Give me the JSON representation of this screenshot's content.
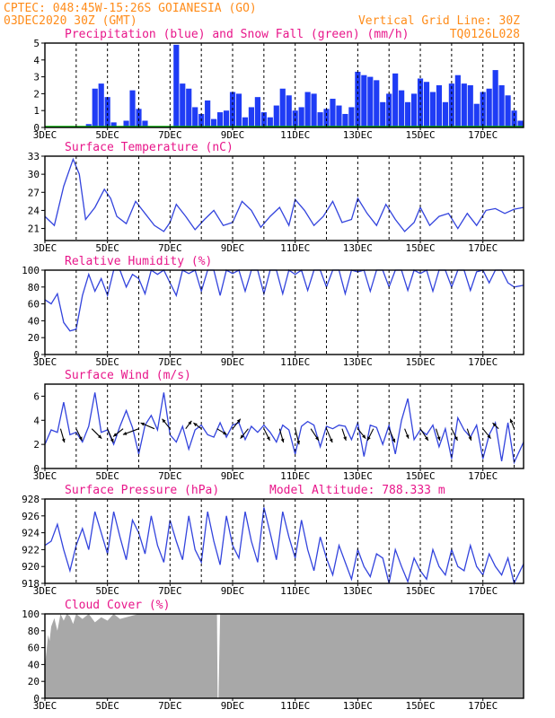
{
  "header": {
    "line1_left": "CPTEC:  048:45W-15:26S  GOIANESIA (GO)",
    "line2_left": "03DEC2020 30Z (GMT)",
    "line2_right": "Vertical Grid Line: 30Z",
    "code": "TQ0126L028"
  },
  "colors": {
    "header": "#ff8c1a",
    "title": "#e8168a",
    "line": "#3344dd",
    "precip": "#1f3cf5",
    "snow": "#00b000",
    "cloud": "#a8a8a8",
    "arrow": "#000000"
  },
  "x_axis": {
    "day_start": 3,
    "day_end": 18.3,
    "tick_days": [
      3,
      5,
      7,
      9,
      11,
      13,
      15,
      17
    ],
    "tick_labels": [
      "3DEC",
      "5DEC",
      "7DEC",
      "9DEC",
      "11DEC",
      "13DEC",
      "15DEC",
      "17DEC"
    ],
    "grid_days": [
      4,
      5,
      6,
      7,
      8,
      9,
      10,
      11,
      12,
      13,
      14,
      15,
      16,
      17,
      18
    ]
  },
  "chart_data": [
    {
      "type": "bar",
      "title": "Precipitation (blue) and Snow Fall (green) (mm/h)",
      "ylim": [
        0,
        5
      ],
      "yticks": [
        0,
        1,
        2,
        3,
        4,
        5
      ],
      "series": [
        {
          "name": "Precipitation",
          "x": [
            3.0,
            3.5,
            4.0,
            4.4,
            4.6,
            4.8,
            5.0,
            5.2,
            5.4,
            5.6,
            5.8,
            6.0,
            6.2,
            6.4,
            6.6,
            6.8,
            7.0,
            7.2,
            7.4,
            7.6,
            7.8,
            8.0,
            8.2,
            8.4,
            8.6,
            8.8,
            9.0,
            9.2,
            9.4,
            9.6,
            9.8,
            10.0,
            10.2,
            10.4,
            10.6,
            10.8,
            11.0,
            11.2,
            11.4,
            11.6,
            11.8,
            12.0,
            12.2,
            12.4,
            12.6,
            12.8,
            13.0,
            13.2,
            13.4,
            13.6,
            13.8,
            14.0,
            14.2,
            14.4,
            14.6,
            14.8,
            15.0,
            15.2,
            15.4,
            15.6,
            15.8,
            16.0,
            16.2,
            16.4,
            16.6,
            16.8,
            17.0,
            17.2,
            17.4,
            17.6,
            17.8,
            18.0,
            18.2
          ],
          "values": [
            0,
            0,
            0,
            0.2,
            2.3,
            2.6,
            1.8,
            0.3,
            0,
            0.4,
            2.2,
            1.1,
            0.4,
            0,
            0,
            0,
            0,
            4.9,
            2.6,
            2.3,
            1.2,
            0.8,
            1.6,
            0.5,
            0.9,
            1.0,
            2.1,
            2.0,
            0.6,
            1.2,
            1.8,
            0.9,
            0.6,
            1.3,
            2.3,
            1.9,
            1.0,
            1.2,
            2.1,
            2.0,
            0.9,
            1.1,
            1.7,
            1.3,
            0.8,
            1.2,
            3.3,
            3.1,
            3.0,
            2.8,
            1.5,
            2.0,
            3.2,
            2.2,
            1.5,
            2.0,
            2.9,
            2.7,
            2.1,
            2.5,
            1.5,
            2.6,
            3.1,
            2.6,
            2.5,
            1.4,
            2.1,
            2.3,
            3.4,
            2.5,
            1.9,
            1.0,
            0.4
          ]
        },
        {
          "name": "Snow Fall",
          "x": [
            3.0,
            18.3
          ],
          "values": [
            0,
            0
          ]
        }
      ]
    },
    {
      "type": "line",
      "title": "Surface Temperature (nC)",
      "ylim": [
        19,
        33
      ],
      "yticks": [
        21,
        24,
        27,
        30,
        33
      ],
      "x": [
        3.0,
        3.3,
        3.6,
        3.9,
        4.1,
        4.3,
        4.6,
        4.9,
        5.1,
        5.3,
        5.6,
        5.9,
        6.2,
        6.5,
        6.8,
        7.0,
        7.2,
        7.5,
        7.8,
        8.1,
        8.4,
        8.7,
        9.0,
        9.3,
        9.6,
        9.9,
        10.2,
        10.5,
        10.8,
        11.0,
        11.3,
        11.6,
        11.9,
        12.2,
        12.5,
        12.8,
        13.0,
        13.3,
        13.6,
        13.9,
        14.2,
        14.5,
        14.8,
        15.0,
        15.3,
        15.6,
        15.9,
        16.2,
        16.5,
        16.8,
        17.1,
        17.4,
        17.7,
        18.0,
        18.3
      ],
      "values": [
        23.0,
        21.5,
        28.0,
        32.5,
        30.0,
        22.5,
        24.5,
        27.5,
        26.0,
        23.0,
        21.8,
        25.5,
        23.5,
        21.5,
        20.5,
        22.0,
        25.0,
        23.0,
        20.8,
        22.5,
        24.0,
        21.5,
        22.0,
        25.5,
        24.0,
        21.2,
        23.0,
        24.5,
        21.5,
        25.8,
        24.0,
        21.5,
        23.0,
        25.5,
        22.0,
        22.5,
        26.0,
        23.5,
        21.5,
        25.0,
        22.5,
        20.5,
        22.0,
        24.5,
        21.5,
        23.0,
        23.5,
        21.0,
        23.5,
        21.5,
        24.0,
        24.3,
        23.5,
        24.2,
        24.5
      ]
    },
    {
      "type": "line",
      "title": "Relative Humidity (%)",
      "ylim": [
        0,
        100
      ],
      "yticks": [
        0,
        20,
        40,
        60,
        80,
        100
      ],
      "x": [
        3.0,
        3.2,
        3.4,
        3.6,
        3.8,
        4.0,
        4.2,
        4.4,
        4.6,
        4.8,
        5.0,
        5.2,
        5.4,
        5.6,
        5.8,
        6.0,
        6.2,
        6.4,
        6.6,
        6.8,
        7.0,
        7.2,
        7.4,
        7.6,
        7.8,
        8.0,
        8.2,
        8.4,
        8.6,
        8.8,
        9.0,
        9.2,
        9.4,
        9.6,
        9.8,
        10.0,
        10.2,
        10.4,
        10.6,
        10.8,
        11.0,
        11.2,
        11.4,
        11.6,
        11.8,
        12.0,
        12.2,
        12.4,
        12.6,
        12.8,
        13.0,
        13.2,
        13.4,
        13.6,
        13.8,
        14.0,
        14.2,
        14.4,
        14.6,
        14.8,
        15.0,
        15.2,
        15.4,
        15.6,
        15.8,
        16.0,
        16.2,
        16.4,
        16.6,
        16.8,
        17.0,
        17.2,
        17.4,
        17.6,
        17.8,
        18.0,
        18.3
      ],
      "values": [
        65,
        60,
        72,
        38,
        28,
        30,
        70,
        95,
        75,
        90,
        70,
        100,
        100,
        80,
        95,
        90,
        72,
        100,
        95,
        100,
        85,
        70,
        100,
        96,
        100,
        75,
        100,
        100,
        70,
        100,
        96,
        100,
        75,
        100,
        100,
        72,
        100,
        100,
        72,
        100,
        95,
        100,
        76,
        100,
        100,
        80,
        100,
        100,
        72,
        100,
        98,
        100,
        75,
        100,
        100,
        80,
        100,
        100,
        76,
        100,
        96,
        100,
        75,
        100,
        100,
        80,
        100,
        100,
        76,
        98,
        100,
        85,
        100,
        100,
        85,
        80,
        82
      ]
    },
    {
      "type": "line",
      "title": "Surface Wind (m/s)",
      "ylim": [
        0,
        7
      ],
      "yticks": [
        0,
        2,
        4,
        6
      ],
      "x": [
        3.0,
        3.2,
        3.4,
        3.6,
        3.8,
        4.0,
        4.2,
        4.4,
        4.6,
        4.8,
        5.0,
        5.2,
        5.4,
        5.6,
        5.8,
        6.0,
        6.2,
        6.4,
        6.6,
        6.8,
        7.0,
        7.2,
        7.4,
        7.6,
        7.8,
        8.0,
        8.2,
        8.4,
        8.6,
        8.8,
        9.0,
        9.2,
        9.4,
        9.6,
        9.8,
        10.0,
        10.2,
        10.4,
        10.6,
        10.8,
        11.0,
        11.2,
        11.4,
        11.6,
        11.8,
        12.0,
        12.2,
        12.4,
        12.6,
        12.8,
        13.0,
        13.2,
        13.4,
        13.6,
        13.8,
        14.0,
        14.2,
        14.4,
        14.6,
        14.8,
        15.0,
        15.2,
        15.4,
        15.6,
        15.8,
        16.0,
        16.2,
        16.4,
        16.6,
        16.8,
        17.0,
        17.2,
        17.4,
        17.6,
        17.8,
        18.0,
        18.3
      ],
      "values": [
        2.0,
        3.2,
        3.0,
        5.5,
        2.8,
        3.0,
        2.2,
        3.5,
        6.3,
        3.0,
        3.2,
        2.0,
        3.5,
        4.8,
        3.4,
        1.2,
        3.6,
        4.4,
        3.2,
        6.3,
        2.8,
        2.2,
        3.5,
        1.6,
        3.2,
        3.6,
        2.8,
        2.6,
        3.8,
        2.6,
        3.6,
        3.8,
        2.4,
        3.5,
        3.0,
        3.6,
        3.0,
        2.2,
        3.6,
        3.2,
        1.2,
        3.5,
        3.9,
        3.6,
        1.8,
        3.5,
        3.3,
        3.6,
        3.5,
        2.4,
        3.8,
        1.0,
        3.6,
        3.4,
        2.0,
        3.6,
        1.2,
        4.0,
        5.8,
        2.4,
        3.2,
        2.8,
        3.6,
        1.8,
        3.3,
        0.8,
        4.2,
        3.2,
        2.6,
        3.6,
        0.8,
        2.8,
        3.8,
        0.6,
        3.8,
        0.5,
        2.2
      ],
      "wind_arrows": {
        "x": [
          3.5,
          4.0,
          4.5,
          5.0,
          5.5,
          6.0,
          6.5,
          7.0,
          7.5,
          8.0,
          8.5,
          9.0,
          9.5,
          10.0,
          10.5,
          11.0,
          11.5,
          12.0,
          12.5,
          13.0,
          13.5,
          14.0,
          14.5,
          15.0,
          15.5,
          16.0,
          16.5,
          17.0,
          17.5,
          18.0
        ],
        "u": [
          0.2,
          0.3,
          0.5,
          0.3,
          -0.5,
          -0.8,
          -0.7,
          -0.4,
          0.3,
          -0.4,
          0.5,
          0.4,
          -0.4,
          0.3,
          0.2,
          0.2,
          0.4,
          0.3,
          0.2,
          0.4,
          -0.3,
          0.3,
          0.2,
          0.4,
          0.2,
          0.3,
          0.2,
          0.4,
          -0.3,
          -0.2
        ],
        "v": [
          -0.7,
          -0.6,
          -0.5,
          -0.7,
          -0.4,
          -0.3,
          0.3,
          0.5,
          0.4,
          0.3,
          -0.3,
          0.5,
          -0.5,
          -0.6,
          -0.7,
          -0.8,
          -0.6,
          -0.7,
          -0.6,
          -0.5,
          -0.6,
          -0.7,
          -0.5,
          -0.6,
          -0.6,
          -0.6,
          -0.6,
          -0.5,
          0.3,
          0.5
        ]
      }
    },
    {
      "type": "line",
      "title": "Surface Pressure (hPa)",
      "title2": "Model Altitude: 788.333 m",
      "ylim": [
        918,
        928
      ],
      "yticks": [
        918,
        920,
        922,
        924,
        926,
        928
      ],
      "x": [
        3.0,
        3.2,
        3.4,
        3.6,
        3.8,
        4.0,
        4.2,
        4.4,
        4.6,
        4.8,
        5.0,
        5.2,
        5.4,
        5.6,
        5.8,
        6.0,
        6.2,
        6.4,
        6.6,
        6.8,
        7.0,
        7.2,
        7.4,
        7.6,
        7.8,
        8.0,
        8.2,
        8.4,
        8.6,
        8.8,
        9.0,
        9.2,
        9.4,
        9.6,
        9.8,
        10.0,
        10.2,
        10.4,
        10.6,
        10.8,
        11.0,
        11.2,
        11.4,
        11.6,
        11.8,
        12.0,
        12.2,
        12.4,
        12.6,
        12.8,
        13.0,
        13.2,
        13.4,
        13.6,
        13.8,
        14.0,
        14.2,
        14.4,
        14.6,
        14.8,
        15.0,
        15.2,
        15.4,
        15.6,
        15.8,
        16.0,
        16.2,
        16.4,
        16.6,
        16.8,
        17.0,
        17.2,
        17.4,
        17.6,
        17.8,
        18.0,
        18.3
      ],
      "values": [
        922.5,
        923.0,
        925.0,
        922.0,
        919.5,
        922.5,
        924.5,
        922.0,
        926.5,
        924.0,
        921.5,
        926.5,
        923.5,
        920.8,
        925.5,
        924.0,
        921.5,
        926.0,
        922.5,
        920.5,
        925.5,
        923.0,
        920.8,
        926.0,
        922.0,
        920.5,
        926.5,
        923.0,
        920.2,
        926.0,
        922.5,
        921.0,
        926.5,
        923.0,
        920.5,
        927.0,
        924.0,
        920.8,
        926.5,
        923.5,
        921.0,
        925.5,
        922.0,
        919.5,
        923.5,
        921.0,
        919.0,
        922.5,
        920.5,
        918.5,
        922.0,
        920.0,
        918.8,
        921.5,
        921.0,
        918.0,
        922.0,
        920.0,
        918.2,
        921.0,
        919.5,
        918.5,
        922.0,
        920.0,
        919.0,
        922.0,
        920.0,
        919.5,
        922.5,
        920.0,
        919.0,
        921.5,
        920.0,
        919.0,
        921.0,
        918.0,
        920.3
      ]
    },
    {
      "type": "area",
      "title": "Cloud Cover (%)",
      "ylim": [
        0,
        100
      ],
      "yticks": [
        0,
        20,
        40,
        60,
        80,
        100
      ],
      "x": [
        3.0,
        3.05,
        3.1,
        3.15,
        3.2,
        3.3,
        3.4,
        3.5,
        3.6,
        3.7,
        3.8,
        3.9,
        4.0,
        4.2,
        4.4,
        4.6,
        4.8,
        5.0,
        5.2,
        5.4,
        5.6,
        5.8,
        6.0,
        6.5,
        7.0,
        8.5,
        8.52,
        8.55,
        8.6,
        10.0,
        12.0,
        14.0,
        16.0,
        18.0,
        18.3
      ],
      "values": [
        40,
        55,
        75,
        68,
        85,
        95,
        80,
        100,
        92,
        100,
        97,
        88,
        100,
        94,
        100,
        90,
        96,
        92,
        100,
        94,
        96,
        98,
        100,
        100,
        100,
        100,
        0,
        0,
        100,
        100,
        100,
        100,
        100,
        100,
        100
      ]
    }
  ]
}
